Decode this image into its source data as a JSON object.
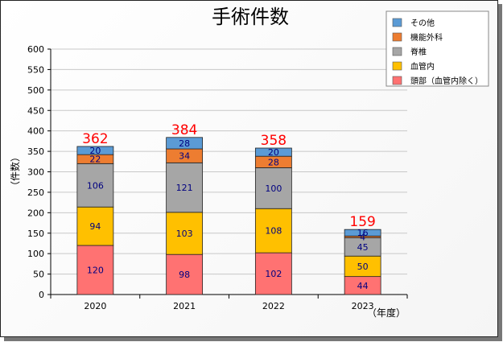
{
  "chart_data": {
    "type": "bar",
    "stacked": true,
    "title": "手術件数",
    "xlabel": "（年度）",
    "ylabel": "（件数）",
    "ylim": [
      0,
      600
    ],
    "yticks": [
      0,
      50,
      100,
      150,
      200,
      250,
      300,
      350,
      400,
      450,
      500,
      550,
      600
    ],
    "grid": true,
    "legend_position": "top-right",
    "categories": [
      "2020",
      "2021",
      "2022",
      "2023"
    ],
    "series": [
      {
        "name": "頭部（血管内除く）",
        "color": "#ff7272",
        "values": [
          120,
          98,
          102,
          44
        ]
      },
      {
        "name": "血管内",
        "color": "#ffc000",
        "values": [
          94,
          103,
          108,
          50
        ]
      },
      {
        "name": "脊椎",
        "color": "#a6a6a6",
        "values": [
          106,
          121,
          100,
          45
        ]
      },
      {
        "name": "機能外科",
        "color": "#ed7d31",
        "values": [
          22,
          34,
          28,
          4
        ]
      },
      {
        "name": "その他",
        "color": "#5b9bd5",
        "values": [
          20,
          28,
          20,
          16
        ]
      }
    ],
    "totals": [
      362,
      384,
      358,
      159
    ]
  }
}
